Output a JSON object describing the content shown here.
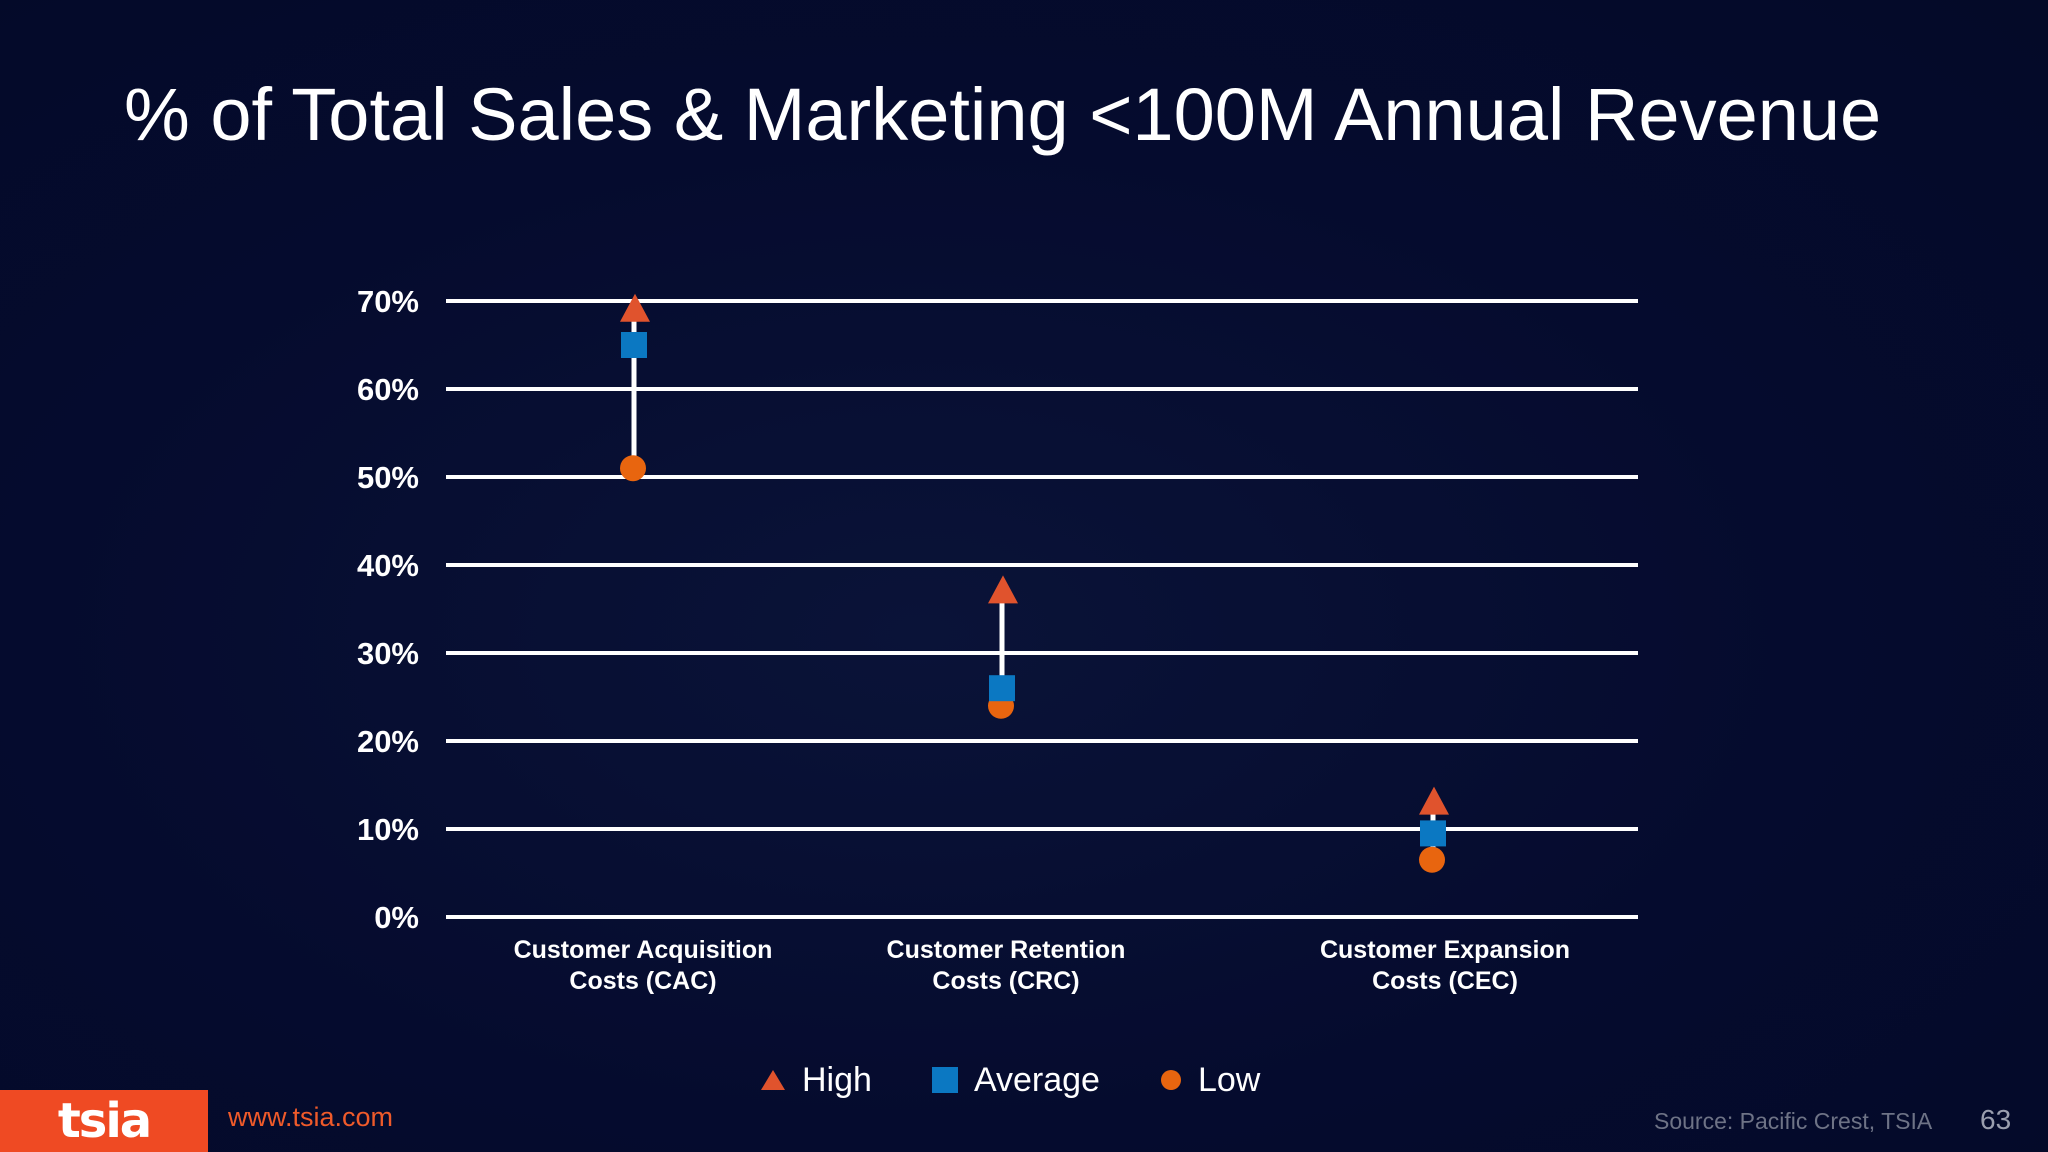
{
  "slide": {
    "title": "% of Total Sales & Marketing <100M Annual Revenue",
    "website": "www.tsia.com",
    "brand": "tsia",
    "source": "Source: Pacific Crest, TSIA",
    "page_number": "63"
  },
  "colors": {
    "background": "#050b2e",
    "high": "#e0532d",
    "average": "#0b78c2",
    "low": "#e8650f",
    "gridline": "#ffffff",
    "brand": "#ef4a23"
  },
  "chart_data": {
    "type": "scatter",
    "categories": [
      [
        "Customer Acquisition",
        "Costs (CAC)"
      ],
      [
        "Customer Retention",
        "Costs (CRC)"
      ],
      [
        "Customer Expansion",
        "Costs (CEC)"
      ]
    ],
    "series": [
      {
        "name": "High",
        "marker": "triangle",
        "color": "#e0532d",
        "values": [
          69,
          37,
          13
        ]
      },
      {
        "name": "Average",
        "marker": "square",
        "color": "#0b78c2",
        "values": [
          65,
          26,
          9.5
        ]
      },
      {
        "name": "Low",
        "marker": "circle",
        "color": "#e8650f",
        "values": [
          51,
          24,
          6.5
        ]
      }
    ],
    "yticks": [
      "0%",
      "10%",
      "20%",
      "30%",
      "40%",
      "50%",
      "60%",
      "70%"
    ],
    "ylim": [
      0,
      70
    ],
    "grid": true,
    "legend_position": "bottom",
    "title": "% of Total Sales & Marketing <100M Annual Revenue",
    "xlabel": "",
    "ylabel": ""
  }
}
